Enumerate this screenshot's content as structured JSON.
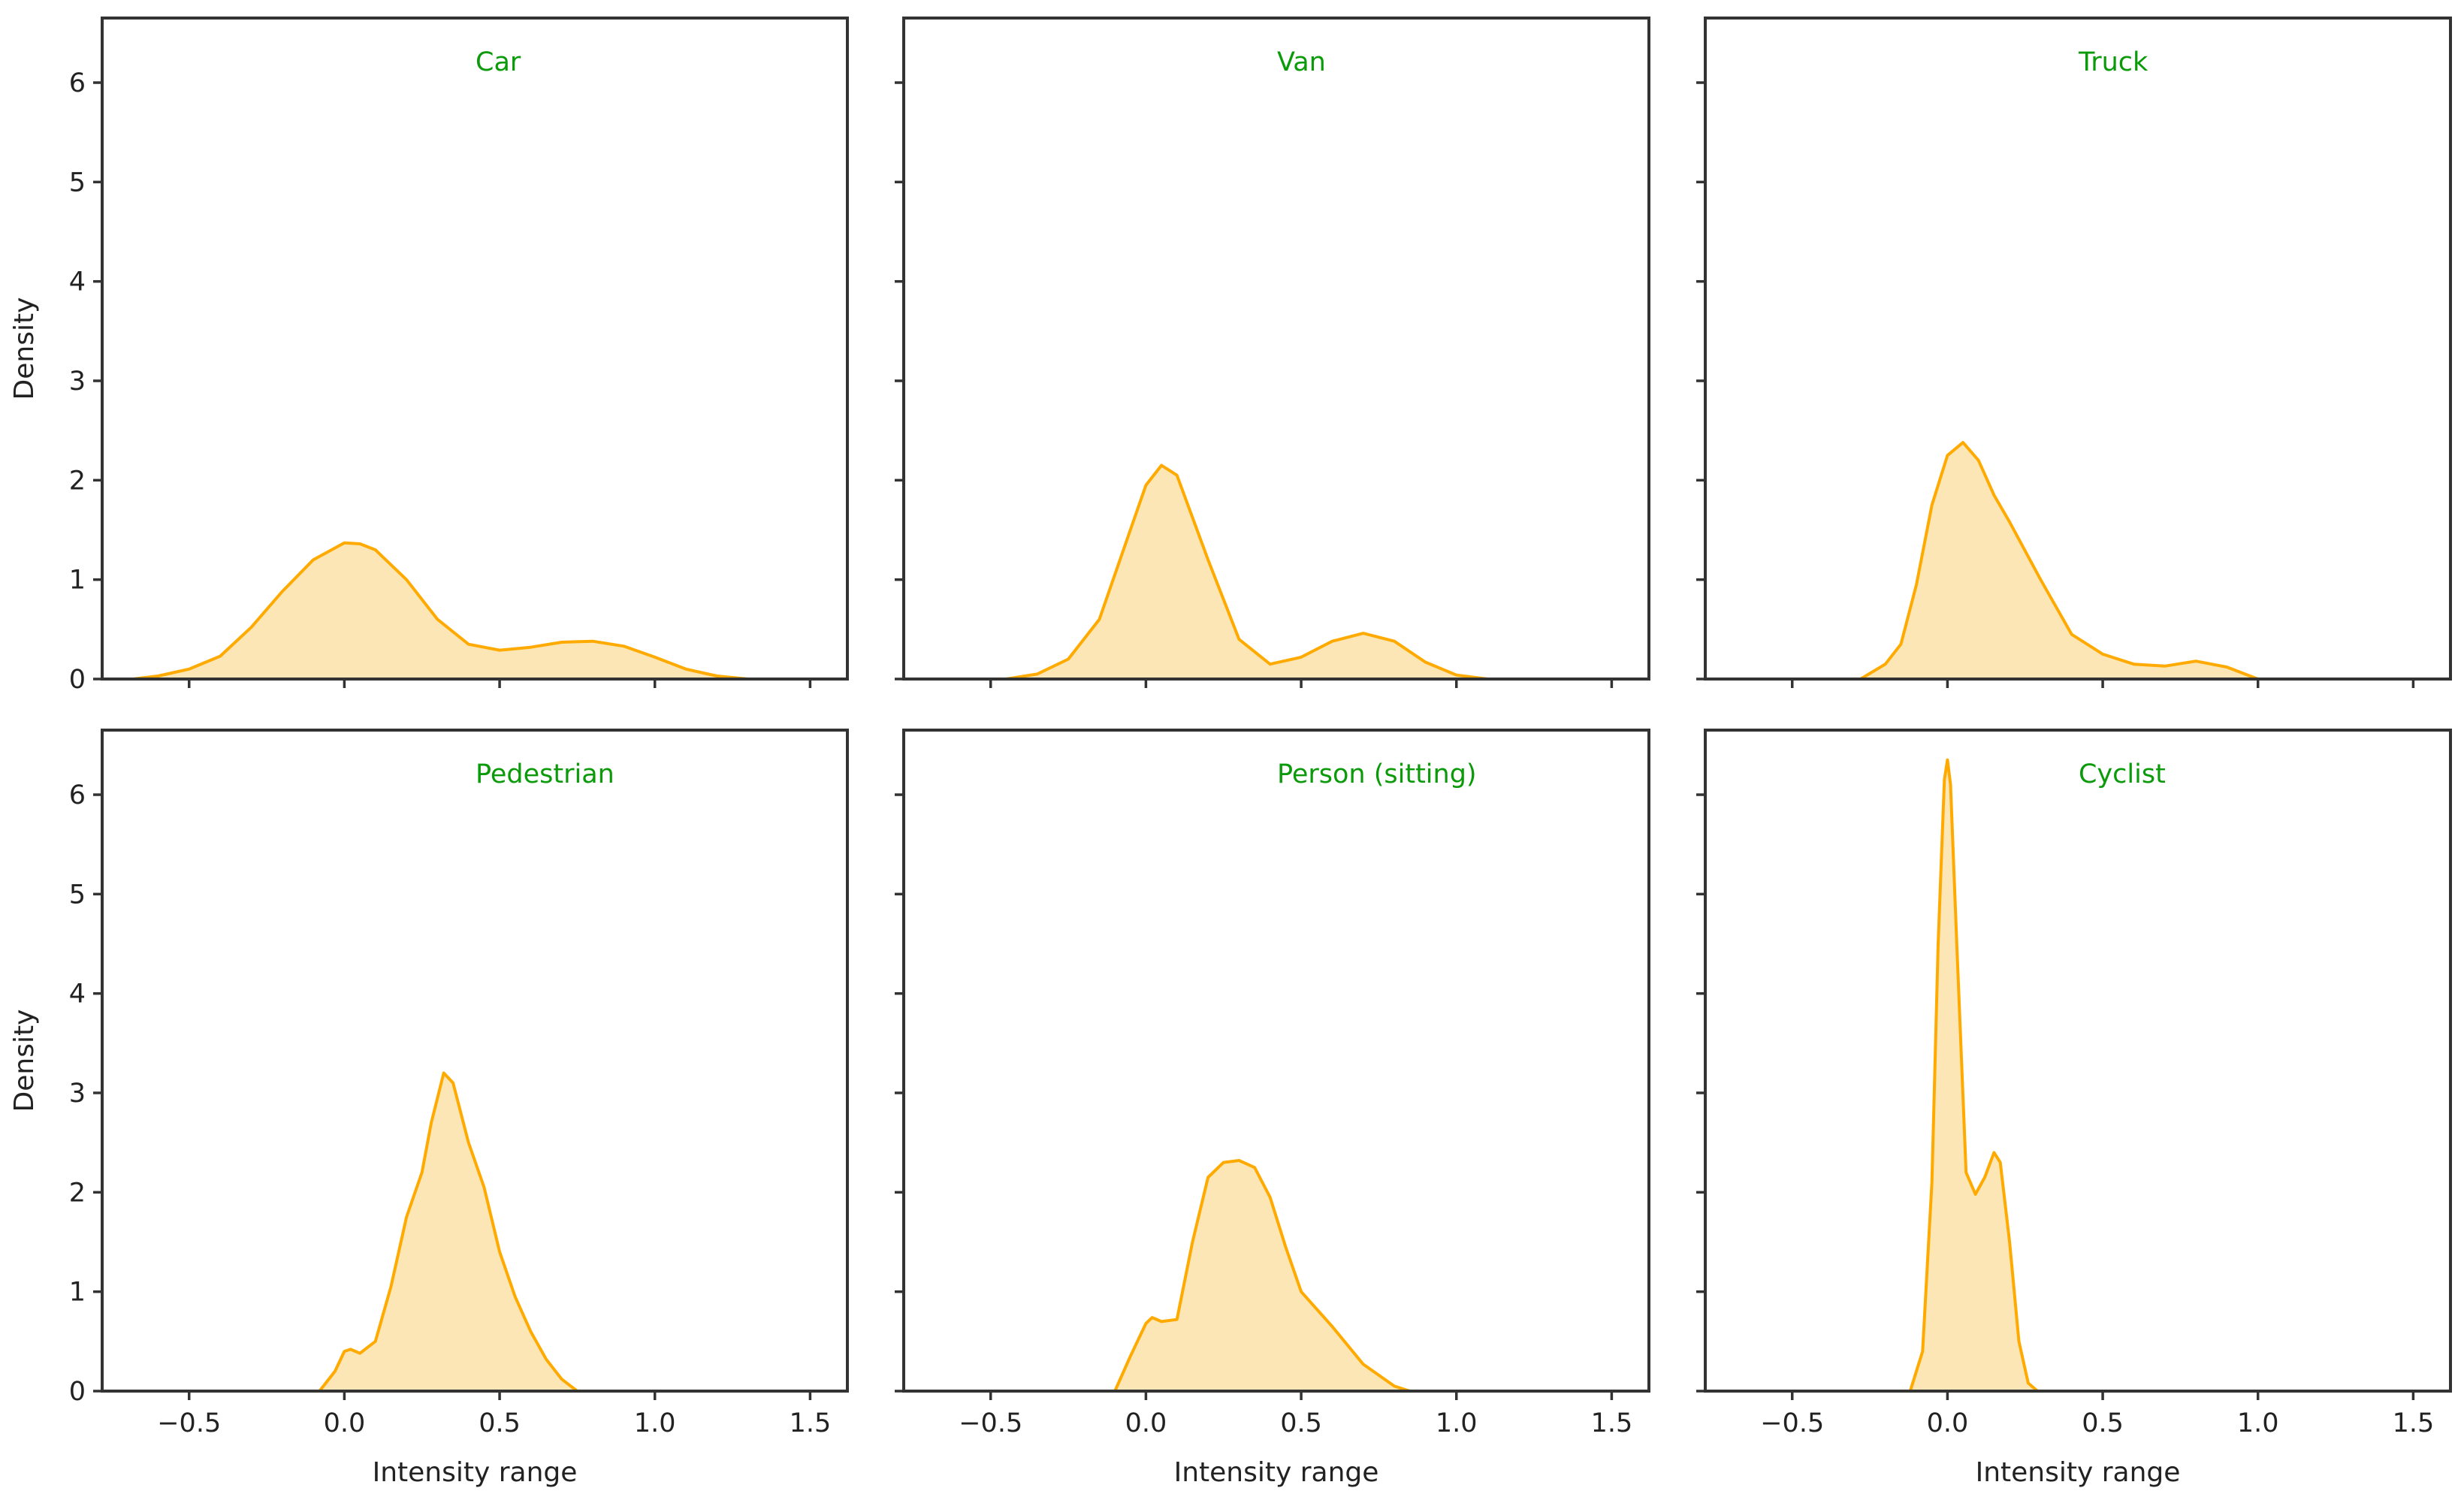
{
  "figure": {
    "style": {
      "line_color": "#FFAA00",
      "fill_color": "#FDE6B5",
      "title_color": "#0A9A0A",
      "axis_color": "#333333",
      "background": "#FFFFFF"
    },
    "xlabel": "Intensity range",
    "ylabel": "Density",
    "xlim": [
      -0.78,
      1.62
    ],
    "ylim": [
      0,
      6.65
    ],
    "xticks": [
      -0.5,
      0.0,
      0.5,
      1.0,
      1.5
    ],
    "xtick_labels": [
      "−0.5",
      "0.0",
      "0.5",
      "1.0",
      "1.5"
    ],
    "yticks": [
      0,
      1,
      2,
      3,
      4,
      5,
      6
    ],
    "ytick_labels": [
      "0",
      "1",
      "2",
      "3",
      "4",
      "5",
      "6"
    ]
  },
  "chart_data": [
    {
      "type": "area",
      "title": "Car",
      "x": [
        -0.68,
        -0.6,
        -0.5,
        -0.4,
        -0.3,
        -0.2,
        -0.1,
        0.0,
        0.05,
        0.1,
        0.2,
        0.3,
        0.4,
        0.5,
        0.6,
        0.7,
        0.8,
        0.9,
        1.0,
        1.1,
        1.2,
        1.3
      ],
      "y": [
        0.0,
        0.03,
        0.1,
        0.23,
        0.52,
        0.88,
        1.2,
        1.37,
        1.36,
        1.3,
        1.0,
        0.6,
        0.35,
        0.29,
        0.32,
        0.37,
        0.38,
        0.33,
        0.22,
        0.1,
        0.03,
        0.0
      ]
    },
    {
      "type": "area",
      "title": "Van",
      "x": [
        -0.45,
        -0.35,
        -0.25,
        -0.15,
        -0.05,
        0.0,
        0.05,
        0.1,
        0.2,
        0.3,
        0.4,
        0.5,
        0.6,
        0.7,
        0.8,
        0.9,
        1.0,
        1.1
      ],
      "y": [
        0.0,
        0.05,
        0.2,
        0.6,
        1.5,
        1.95,
        2.15,
        2.05,
        1.2,
        0.4,
        0.15,
        0.22,
        0.38,
        0.46,
        0.38,
        0.17,
        0.04,
        0.0
      ]
    },
    {
      "type": "area",
      "title": "Truck",
      "x": [
        -0.28,
        -0.2,
        -0.15,
        -0.1,
        -0.05,
        0.0,
        0.05,
        0.1,
        0.15,
        0.2,
        0.3,
        0.4,
        0.5,
        0.6,
        0.7,
        0.8,
        0.9,
        1.0
      ],
      "y": [
        0.0,
        0.15,
        0.35,
        0.95,
        1.75,
        2.25,
        2.38,
        2.2,
        1.85,
        1.58,
        1.0,
        0.45,
        0.25,
        0.15,
        0.13,
        0.18,
        0.12,
        0.0
      ]
    },
    {
      "type": "area",
      "title": "Pedestrian",
      "x": [
        -0.08,
        -0.03,
        0.0,
        0.02,
        0.05,
        0.1,
        0.15,
        0.2,
        0.25,
        0.28,
        0.32,
        0.35,
        0.4,
        0.45,
        0.5,
        0.55,
        0.6,
        0.65,
        0.7,
        0.75
      ],
      "y": [
        0.0,
        0.2,
        0.4,
        0.42,
        0.38,
        0.5,
        1.05,
        1.75,
        2.2,
        2.7,
        3.2,
        3.1,
        2.5,
        2.05,
        1.4,
        0.95,
        0.6,
        0.32,
        0.12,
        0.0
      ]
    },
    {
      "type": "area",
      "title": "Person (sitting)",
      "x": [
        -0.1,
        -0.05,
        0.0,
        0.02,
        0.05,
        0.1,
        0.15,
        0.2,
        0.25,
        0.3,
        0.35,
        0.4,
        0.45,
        0.5,
        0.6,
        0.7,
        0.8,
        0.85
      ],
      "y": [
        0.0,
        0.35,
        0.68,
        0.74,
        0.7,
        0.72,
        1.5,
        2.15,
        2.3,
        2.32,
        2.25,
        1.95,
        1.45,
        1.0,
        0.65,
        0.27,
        0.05,
        0.0
      ]
    },
    {
      "type": "area",
      "title": "Cyclist",
      "x": [
        -0.12,
        -0.08,
        -0.05,
        -0.03,
        -0.01,
        0.0,
        0.01,
        0.03,
        0.06,
        0.09,
        0.12,
        0.15,
        0.17,
        0.2,
        0.23,
        0.26,
        0.29
      ],
      "y": [
        0.0,
        0.4,
        2.1,
        4.5,
        6.15,
        6.35,
        6.1,
        4.5,
        2.2,
        1.98,
        2.15,
        2.4,
        2.3,
        1.5,
        0.5,
        0.08,
        0.0
      ]
    }
  ]
}
